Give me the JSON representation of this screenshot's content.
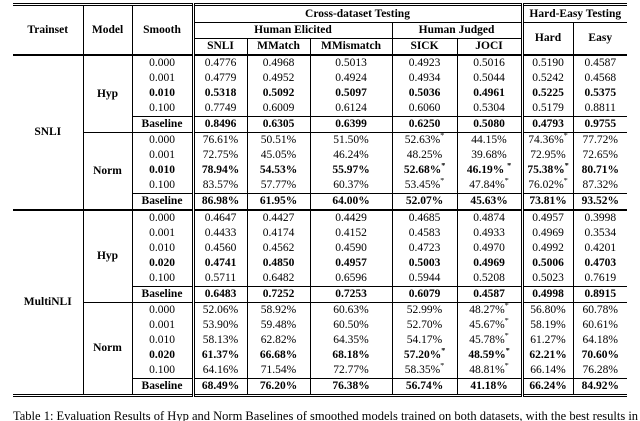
{
  "table": {
    "header": {
      "trainset": "Trainset",
      "model": "Model",
      "smooth": "Smooth",
      "cross_dataset": "Cross-dataset Testing",
      "hard_easy": "Hard-Easy Testing",
      "human_elicited": "Human Elicited",
      "human_judged": "Human Judged",
      "snli": "SNLI",
      "mmatch": "MMatch",
      "mmismatch": "MMismatch",
      "sick": "SICK",
      "joci": "JOCI",
      "hard": "Hard",
      "easy": "Easy"
    },
    "blocks": [
      {
        "trainset": "SNLI",
        "models": [
          {
            "model": "Hyp",
            "rows": [
              {
                "smooth": "0.000",
                "bold": false,
                "baseline": false,
                "values": [
                  "0.4776",
                  "0.4968",
                  "0.5013",
                  "0.4923",
                  "0.5016",
                  "0.5190",
                  "0.4587"
                ]
              },
              {
                "smooth": "0.001",
                "bold": false,
                "baseline": false,
                "values": [
                  "0.4779",
                  "0.4952",
                  "0.4924",
                  "0.4934",
                  "0.5044",
                  "0.5242",
                  "0.4568"
                ]
              },
              {
                "smooth": "0.010",
                "bold": true,
                "baseline": false,
                "values": [
                  "0.5318",
                  "0.5092",
                  "0.5097",
                  "0.5036",
                  "0.4961",
                  "0.5225",
                  "0.5375"
                ]
              },
              {
                "smooth": "0.100",
                "bold": false,
                "baseline": false,
                "values": [
                  "0.7749",
                  "0.6009",
                  "0.6124",
                  "0.6060",
                  "0.5304",
                  "0.5179",
                  "0.8811"
                ]
              },
              {
                "smooth": "Baseline",
                "bold": true,
                "baseline": true,
                "values": [
                  "0.8496",
                  "0.6305",
                  "0.6399",
                  "0.6250",
                  "0.5080",
                  "0.4793",
                  "0.9755"
                ]
              }
            ]
          },
          {
            "model": "Norm",
            "rows": [
              {
                "smooth": "0.000",
                "bold": false,
                "baseline": false,
                "values": [
                  "76.61%",
                  "50.51%",
                  "51.50%",
                  "52.63%*",
                  "44.15%",
                  "74.36%*",
                  "77.72%"
                ]
              },
              {
                "smooth": "0.001",
                "bold": false,
                "baseline": false,
                "values": [
                  "72.75%",
                  "45.05%",
                  "46.24%",
                  "48.25%",
                  "39.68%",
                  "72.95%",
                  "72.65%"
                ]
              },
              {
                "smooth": "0.010",
                "bold": true,
                "baseline": false,
                "values": [
                  "78.94%",
                  "54.53%",
                  "55.97%",
                  "52.68%*",
                  "46.19% *",
                  "75.38%*",
                  "80.71%"
                ]
              },
              {
                "smooth": "0.100",
                "bold": false,
                "baseline": false,
                "values": [
                  "83.57%",
                  "57.77%",
                  "60.37%",
                  "53.45%*",
                  "47.84%*",
                  "76.02%*",
                  "87.32%"
                ]
              },
              {
                "smooth": "Baseline",
                "bold": true,
                "baseline": true,
                "values": [
                  "86.98%",
                  "61.95%",
                  "64.00%",
                  "52.07%",
                  "45.63%",
                  "73.81%",
                  "93.52%"
                ]
              }
            ]
          }
        ]
      },
      {
        "trainset": "MultiNLI",
        "models": [
          {
            "model": "Hyp",
            "rows": [
              {
                "smooth": "0.000",
                "bold": false,
                "baseline": false,
                "values": [
                  "0.4647",
                  "0.4427",
                  "0.4429",
                  "0.4685",
                  "0.4874",
                  "0.4957",
                  "0.3998"
                ]
              },
              {
                "smooth": "0.001",
                "bold": false,
                "baseline": false,
                "values": [
                  "0.4433",
                  "0.4174",
                  "0.4152",
                  "0.4583",
                  "0.4933",
                  "0.4969",
                  "0.3534"
                ]
              },
              {
                "smooth": "0.010",
                "bold": false,
                "baseline": false,
                "values": [
                  "0.4560",
                  "0.4562",
                  "0.4590",
                  "0.4723",
                  "0.4970",
                  "0.4992",
                  "0.4201"
                ]
              },
              {
                "smooth": "0.020",
                "bold": true,
                "baseline": false,
                "values": [
                  "0.4741",
                  "0.4850",
                  "0.4957",
                  "0.5003",
                  "0.4969",
                  "0.5006",
                  "0.4703"
                ]
              },
              {
                "smooth": "0.100",
                "bold": false,
                "baseline": false,
                "values": [
                  "0.5711",
                  "0.6482",
                  "0.6596",
                  "0.5944",
                  "0.5208",
                  "0.5023",
                  "0.7619"
                ]
              },
              {
                "smooth": "Baseline",
                "bold": true,
                "baseline": true,
                "values": [
                  "0.6483",
                  "0.7252",
                  "0.7253",
                  "0.6079",
                  "0.4587",
                  "0.4998",
                  "0.8915"
                ]
              }
            ]
          },
          {
            "model": "Norm",
            "rows": [
              {
                "smooth": "0.000",
                "bold": false,
                "baseline": false,
                "values": [
                  "52.06%",
                  "58.92%",
                  "60.63%",
                  "52.99%",
                  "48.27%*",
                  "56.80%",
                  "60.78%"
                ]
              },
              {
                "smooth": "0.001",
                "bold": false,
                "baseline": false,
                "values": [
                  "53.90%",
                  "59.48%",
                  "60.50%",
                  "52.70%",
                  "45.67%*",
                  "58.19%",
                  "60.61%"
                ]
              },
              {
                "smooth": "0.010",
                "bold": false,
                "baseline": false,
                "values": [
                  "58.13%",
                  "62.82%",
                  "64.35%",
                  "54.17%",
                  "45.78%*",
                  "61.27%",
                  "64.18%"
                ]
              },
              {
                "smooth": "0.020",
                "bold": true,
                "baseline": false,
                "values": [
                  "61.37%",
                  "66.68%",
                  "68.18%",
                  "57.20%*",
                  "48.59%*",
                  "62.21%",
                  "70.60%"
                ]
              },
              {
                "smooth": "0.100",
                "bold": false,
                "baseline": false,
                "values": [
                  "64.16%",
                  "71.54%",
                  "72.77%",
                  "58.35%*",
                  "48.81%*",
                  "66.14%",
                  "76.28%"
                ]
              },
              {
                "smooth": "Baseline",
                "bold": true,
                "baseline": true,
                "values": [
                  "68.49%",
                  "76.20%",
                  "76.38%",
                  "56.74%",
                  "41.18%",
                  "66.24%",
                  "84.92%"
                ]
              }
            ]
          }
        ]
      }
    ]
  },
  "caption": "Table 1: Evaluation Results of Hyp and Norm Baselines of smoothed models trained on both datasets, with the best results in bold."
}
